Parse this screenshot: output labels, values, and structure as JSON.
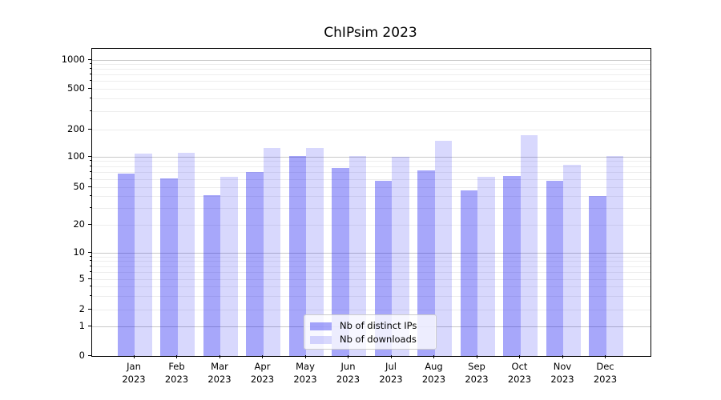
{
  "chart_data": {
    "type": "bar",
    "title": "ChIPsim 2023",
    "categories": [
      "Jan",
      "Feb",
      "Mar",
      "Apr",
      "May",
      "Jun",
      "Jul",
      "Aug",
      "Sep",
      "Oct",
      "Nov",
      "Dec"
    ],
    "category_year": "2023",
    "series": [
      {
        "name": "Nb of distinct IPs",
        "color": "#a7a7fa",
        "fill": "rgba(10,10,240,0.36)",
        "values": [
          68,
          61,
          41,
          71,
          102,
          78,
          58,
          74,
          46,
          65,
          58,
          40
        ]
      },
      {
        "name": "Nb of downloads",
        "color": "#d8d8fd",
        "fill": "rgba(10,10,240,0.16)",
        "values": [
          108,
          110,
          63,
          124,
          124,
          102,
          100,
          150,
          64,
          175,
          84,
          102
        ]
      }
    ],
    "xlabel": "",
    "ylabel": "",
    "yscale": "symlog",
    "ylim": [
      0,
      1200
    ],
    "yticks": [
      0,
      1,
      2,
      5,
      10,
      20,
      50,
      100,
      200,
      500,
      1000
    ],
    "ytick_labels": [
      "0",
      "1",
      "2",
      "5",
      "10",
      "20",
      "50",
      "100",
      "200",
      "500",
      "1000"
    ],
    "minor_grid_values": [
      2,
      3,
      4,
      5,
      6,
      7,
      8,
      9,
      20,
      30,
      40,
      50,
      60,
      70,
      80,
      90,
      200,
      300,
      400,
      500,
      600,
      700,
      800,
      900
    ],
    "major_grid_values": [
      1,
      10,
      100,
      1000
    ],
    "grid": true,
    "legend_position": "lower center",
    "colors": {
      "major_grid": "#c8c8c8",
      "minor_grid": "#ededed",
      "axis": "#000000",
      "text": "#000000",
      "legend_border": "#cccccc",
      "legend_background": "rgba(255,255,255,0.8)"
    }
  }
}
